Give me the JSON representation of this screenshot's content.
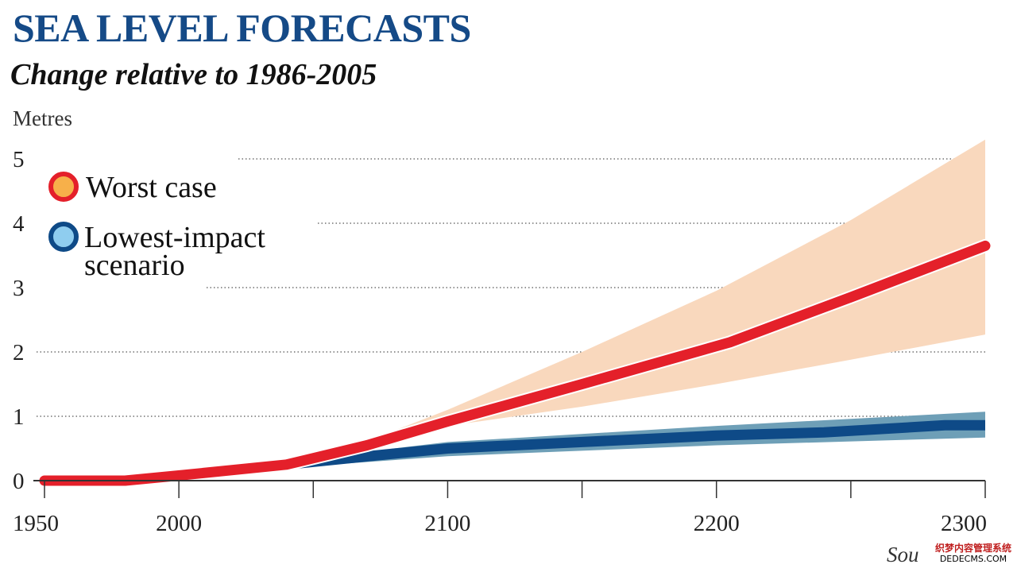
{
  "header": {
    "title": "SEA LEVEL FORECASTS",
    "subtitle": "Change relative to 1986-2005"
  },
  "source_text": "Sou",
  "watermark": {
    "line1": "织梦内容管理系统",
    "line2": "DEDECMS.COM"
  },
  "chart_data": {
    "type": "area",
    "title": "SEA LEVEL FORECASTS",
    "subtitle": "Change relative to 1986-2005",
    "ylabel": "Metres",
    "xlabel": "",
    "xlim": [
      1950,
      2300
    ],
    "ylim": [
      0,
      5
    ],
    "x_ticks": [
      1950,
      2000,
      2100,
      2200,
      2300
    ],
    "x_minor_ticks": [
      2050,
      2150,
      2250
    ],
    "y_ticks": [
      0,
      1,
      2,
      3,
      4,
      5
    ],
    "grid": "horizontal-dotted",
    "legend_placement": "top-left",
    "colors": {
      "title": "#154a87",
      "worst_line": "#e4202a",
      "worst_band": "#f9d8bd",
      "worst_marker_fill": "#f7b04a",
      "low_line": "#0e4a87",
      "low_band": "#6e9fb7",
      "low_marker_fill": "#8fcdef",
      "grid": "#555555",
      "axis": "#333333"
    },
    "legend": [
      {
        "label": "Worst case",
        "series": "worst"
      },
      {
        "label_lines": [
          "Lowest-impact",
          "scenario"
        ],
        "series": "low"
      }
    ],
    "series": [
      {
        "key": "worst",
        "name": "Worst case",
        "points": [
          [
            1950,
            0.0
          ],
          [
            1980,
            0.0
          ],
          [
            2000,
            0.08
          ],
          [
            2040,
            0.25
          ],
          [
            2070,
            0.55
          ],
          [
            2100,
            0.92
          ],
          [
            2150,
            1.5
          ],
          [
            2205,
            2.15
          ],
          [
            2250,
            2.85
          ],
          [
            2300,
            3.65
          ]
        ],
        "band_upper": [
          [
            2060,
            0.45
          ],
          [
            2100,
            1.1
          ],
          [
            2150,
            2.0
          ],
          [
            2200,
            2.95
          ],
          [
            2250,
            4.05
          ],
          [
            2300,
            5.3
          ]
        ],
        "band_lower": [
          [
            2060,
            0.45
          ],
          [
            2100,
            0.85
          ],
          [
            2150,
            1.15
          ],
          [
            2200,
            1.5
          ],
          [
            2250,
            1.88
          ],
          [
            2300,
            2.27
          ]
        ]
      },
      {
        "key": "low",
        "name": "Lowest-impact scenario",
        "points": [
          [
            2040,
            0.25
          ],
          [
            2080,
            0.42
          ],
          [
            2100,
            0.5
          ],
          [
            2150,
            0.6
          ],
          [
            2200,
            0.7
          ],
          [
            2240,
            0.75
          ],
          [
            2285,
            0.86
          ],
          [
            2300,
            0.86
          ]
        ],
        "band_upper": [
          [
            2040,
            0.25
          ],
          [
            2080,
            0.5
          ],
          [
            2100,
            0.6
          ],
          [
            2200,
            0.85
          ],
          [
            2300,
            1.07
          ]
        ],
        "band_lower": [
          [
            2040,
            0.2
          ],
          [
            2080,
            0.32
          ],
          [
            2100,
            0.38
          ],
          [
            2200,
            0.55
          ],
          [
            2300,
            0.67
          ]
        ]
      }
    ]
  }
}
